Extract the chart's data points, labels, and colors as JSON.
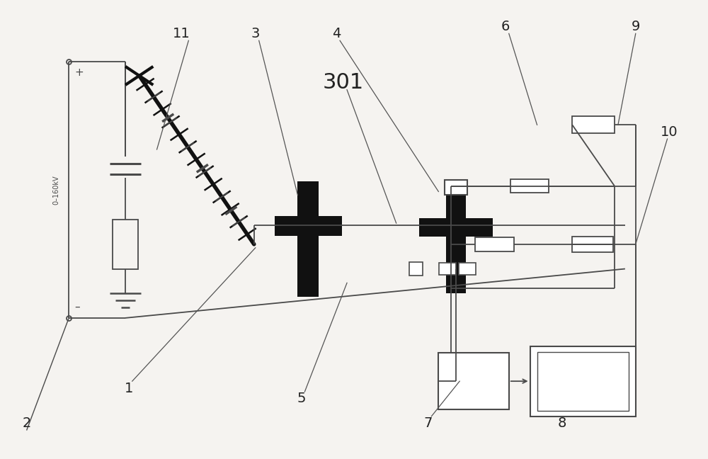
{
  "bg_color": "#f5f3f0",
  "line_color": "#4a4a4a",
  "dark_color": "#111111",
  "label_color": "#222222",
  "fig_w": 10.0,
  "fig_h": 6.48,
  "dpi": 100
}
